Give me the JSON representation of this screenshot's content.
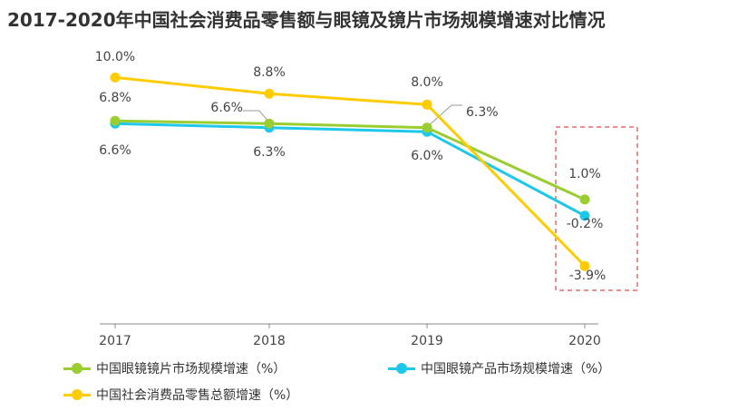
{
  "chart_data": {
    "type": "line",
    "title": "2017-2020年中国社会消费品零售额与眼镜及镜片市场规模增速对比情况",
    "categories": [
      "2017",
      "2018",
      "2019",
      "2020"
    ],
    "ylim": [
      -6,
      12
    ],
    "grid": false,
    "legend_position": "bottom",
    "highlight": "2020",
    "series": [
      {
        "name": "中国眼镜镜片市场规模增速（%）",
        "color": "#9ACD32",
        "values": [
          6.8,
          6.6,
          6.3,
          1.0
        ],
        "labels": [
          "6.8%",
          "6.6%",
          "6.3%",
          "1.0%"
        ]
      },
      {
        "name": "中国眼镜产品市场规模增速（%）",
        "color": "#1EC8EB",
        "values": [
          6.6,
          6.3,
          6.0,
          -0.2
        ],
        "labels": [
          "6.6%",
          "6.3%",
          "6.0%",
          "-0.2%"
        ]
      },
      {
        "name": "中国社会消费品零售总额增速（%）",
        "color": "#FFCC00",
        "values": [
          10.0,
          8.8,
          8.0,
          -3.9
        ],
        "labels": [
          "10.0%",
          "8.8%",
          "8.0%",
          "-3.9%"
        ]
      }
    ]
  }
}
